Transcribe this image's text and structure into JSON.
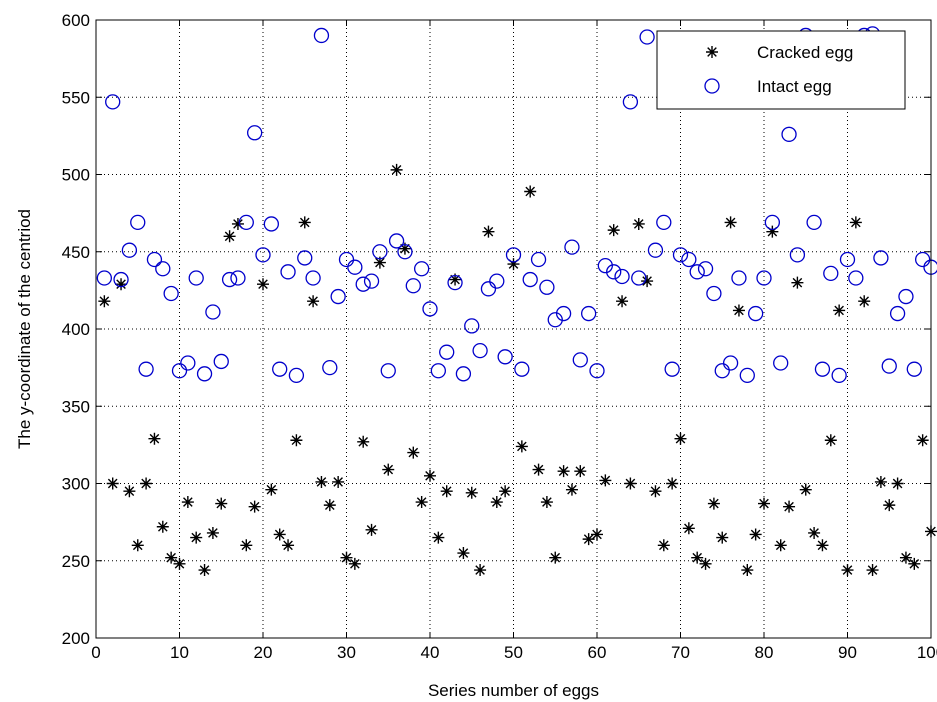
{
  "chart_data": {
    "type": "scatter",
    "xlabel": "Series number of eggs",
    "ylabel": "The y-coordinate of the centriod",
    "xlim": [
      0,
      100
    ],
    "ylim": [
      200,
      600
    ],
    "xticks": [
      "0",
      "10",
      "20",
      "30",
      "40",
      "50",
      "60",
      "70",
      "80",
      "90",
      "100"
    ],
    "yticks": [
      "200",
      "250",
      "300",
      "350",
      "400",
      "450",
      "500",
      "550",
      "600"
    ],
    "grid": true,
    "legend_position": "top-right",
    "series": [
      {
        "name": "Cracked egg",
        "marker": "star",
        "color": "#000000",
        "points": [
          [
            1,
            418
          ],
          [
            2,
            300
          ],
          [
            3,
            429
          ],
          [
            4,
            295
          ],
          [
            5,
            260
          ],
          [
            6,
            300
          ],
          [
            7,
            329
          ],
          [
            8,
            272
          ],
          [
            9,
            252
          ],
          [
            10,
            248
          ],
          [
            11,
            288
          ],
          [
            12,
            265
          ],
          [
            13,
            244
          ],
          [
            14,
            268
          ],
          [
            15,
            287
          ],
          [
            16,
            460
          ],
          [
            17,
            468
          ],
          [
            18,
            260
          ],
          [
            19,
            285
          ],
          [
            20,
            429
          ],
          [
            21,
            296
          ],
          [
            22,
            267
          ],
          [
            23,
            260
          ],
          [
            24,
            328
          ],
          [
            25,
            469
          ],
          [
            26,
            418
          ],
          [
            27,
            301
          ],
          [
            28,
            286
          ],
          [
            29,
            301
          ],
          [
            30,
            252
          ],
          [
            31,
            248
          ],
          [
            32,
            327
          ],
          [
            33,
            270
          ],
          [
            34,
            443
          ],
          [
            35,
            309
          ],
          [
            36,
            503
          ],
          [
            37,
            452
          ],
          [
            38,
            320
          ],
          [
            39,
            288
          ],
          [
            40,
            305
          ],
          [
            41,
            265
          ],
          [
            42,
            295
          ],
          [
            43,
            432
          ],
          [
            44,
            255
          ],
          [
            45,
            294
          ],
          [
            46,
            244
          ],
          [
            47,
            463
          ],
          [
            48,
            288
          ],
          [
            49,
            295
          ],
          [
            50,
            442
          ],
          [
            51,
            324
          ],
          [
            52,
            489
          ],
          [
            53,
            309
          ],
          [
            54,
            288
          ],
          [
            55,
            252
          ],
          [
            56,
            308
          ],
          [
            57,
            296
          ],
          [
            58,
            308
          ],
          [
            59,
            264
          ],
          [
            60,
            267
          ],
          [
            61,
            302
          ],
          [
            62,
            464
          ],
          [
            63,
            418
          ],
          [
            64,
            300
          ],
          [
            65,
            468
          ],
          [
            66,
            431
          ],
          [
            67,
            295
          ],
          [
            68,
            260
          ],
          [
            69,
            300
          ],
          [
            70,
            329
          ],
          [
            71,
            271
          ],
          [
            72,
            252
          ],
          [
            73,
            248
          ],
          [
            74,
            287
          ],
          [
            75,
            265
          ],
          [
            76,
            469
          ],
          [
            77,
            412
          ],
          [
            78,
            244
          ],
          [
            79,
            267
          ],
          [
            80,
            287
          ],
          [
            81,
            463
          ],
          [
            82,
            260
          ],
          [
            83,
            285
          ],
          [
            84,
            430
          ],
          [
            85,
            296
          ],
          [
            86,
            268
          ],
          [
            87,
            260
          ],
          [
            88,
            328
          ],
          [
            89,
            412
          ],
          [
            90,
            244
          ],
          [
            91,
            469
          ],
          [
            92,
            418
          ],
          [
            93,
            244
          ],
          [
            94,
            301
          ],
          [
            95,
            286
          ],
          [
            96,
            300
          ],
          [
            97,
            252
          ],
          [
            98,
            248
          ],
          [
            99,
            328
          ],
          [
            100,
            269
          ]
        ]
      },
      {
        "name": "Intact egg",
        "marker": "circle",
        "color": "#0000cc",
        "points": [
          [
            1,
            433
          ],
          [
            2,
            547
          ],
          [
            3,
            432
          ],
          [
            4,
            451
          ],
          [
            5,
            469
          ],
          [
            6,
            374
          ],
          [
            7,
            445
          ],
          [
            8,
            439
          ],
          [
            9,
            423
          ],
          [
            10,
            373
          ],
          [
            11,
            378
          ],
          [
            12,
            433
          ],
          [
            13,
            371
          ],
          [
            14,
            411
          ],
          [
            15,
            379
          ],
          [
            16,
            432
          ],
          [
            17,
            433
          ],
          [
            18,
            469
          ],
          [
            19,
            527
          ],
          [
            20,
            448
          ],
          [
            21,
            468
          ],
          [
            22,
            374
          ],
          [
            23,
            437
          ],
          [
            24,
            370
          ],
          [
            25,
            446
          ],
          [
            26,
            433
          ],
          [
            27,
            590
          ],
          [
            28,
            375
          ],
          [
            29,
            421
          ],
          [
            30,
            445
          ],
          [
            31,
            440
          ],
          [
            32,
            429
          ],
          [
            33,
            431
          ],
          [
            34,
            450
          ],
          [
            35,
            373
          ],
          [
            36,
            457
          ],
          [
            37,
            450
          ],
          [
            38,
            428
          ],
          [
            39,
            439
          ],
          [
            40,
            413
          ],
          [
            41,
            373
          ],
          [
            42,
            385
          ],
          [
            43,
            430
          ],
          [
            44,
            371
          ],
          [
            45,
            402
          ],
          [
            46,
            386
          ],
          [
            47,
            426
          ],
          [
            48,
            431
          ],
          [
            49,
            382
          ],
          [
            50,
            448
          ],
          [
            51,
            374
          ],
          [
            52,
            432
          ],
          [
            53,
            445
          ],
          [
            54,
            427
          ],
          [
            55,
            406
          ],
          [
            56,
            410
          ],
          [
            57,
            453
          ],
          [
            58,
            380
          ],
          [
            59,
            410
          ],
          [
            60,
            373
          ],
          [
            61,
            441
          ],
          [
            62,
            437
          ],
          [
            63,
            434
          ],
          [
            64,
            547
          ],
          [
            65,
            433
          ],
          [
            66,
            589
          ],
          [
            67,
            451
          ],
          [
            68,
            469
          ],
          [
            69,
            374
          ],
          [
            70,
            448
          ],
          [
            71,
            445
          ],
          [
            72,
            437
          ],
          [
            73,
            439
          ],
          [
            74,
            423
          ],
          [
            75,
            373
          ],
          [
            76,
            378
          ],
          [
            77,
            433
          ],
          [
            78,
            370
          ],
          [
            79,
            410
          ],
          [
            80,
            433
          ],
          [
            81,
            469
          ],
          [
            82,
            378
          ],
          [
            83,
            526
          ],
          [
            84,
            448
          ],
          [
            85,
            590
          ],
          [
            86,
            469
          ],
          [
            87,
            374
          ],
          [
            88,
            436
          ],
          [
            89,
            370
          ],
          [
            90,
            445
          ],
          [
            91,
            433
          ],
          [
            92,
            590
          ],
          [
            93,
            591
          ],
          [
            94,
            446
          ],
          [
            95,
            376
          ],
          [
            96,
            410
          ],
          [
            97,
            421
          ],
          [
            98,
            374
          ],
          [
            99,
            445
          ],
          [
            100,
            440
          ]
        ]
      }
    ]
  }
}
